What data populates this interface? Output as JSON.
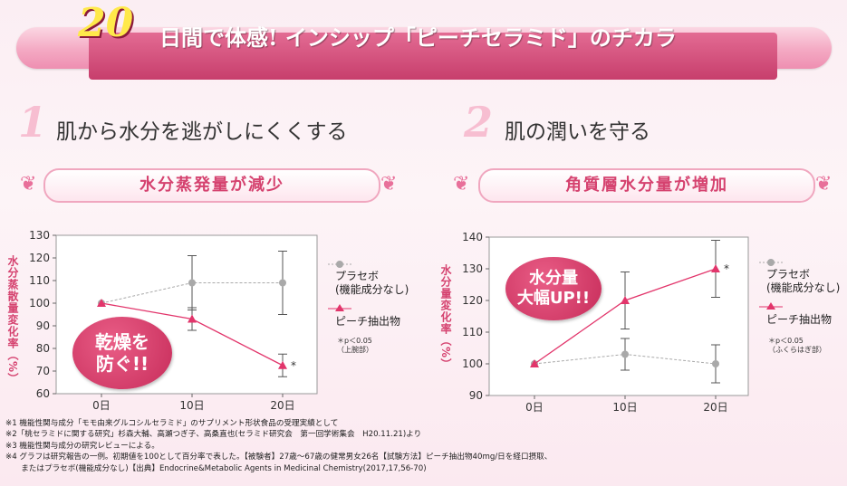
{
  "header": {
    "number": "20",
    "text": "日間で体感! インシップ「ピーチセラミド」のチカラ"
  },
  "colors": {
    "placebo": "#a9a9a9",
    "peach": "#e2356b",
    "accent": "#d5426f"
  },
  "sections": [
    {
      "num": "1",
      "title": "肌から水分を逃がしにくくする",
      "ribbon": "水分蒸発量が減少",
      "ylabel": "水分蒸散量変化率（%）",
      "bubble_line1": "乾燥を",
      "bubble_line2": "防ぐ!!",
      "note_line1": "＊p＜0.05",
      "note_line2": "（上腕部）"
    },
    {
      "num": "2",
      "title": "肌の潤いを守る",
      "ribbon": "角質層水分量が増加",
      "ylabel": "水分量変化率（%）",
      "bubble_line1": "水分量",
      "bubble_line2": "大幅UP!!",
      "note_line1": "＊p＜0.05",
      "note_line2": "（ふくらはぎ部）"
    }
  ],
  "legend": {
    "placebo": "プラセボ\n(機能成分なし)",
    "peach": "ピーチ抽出物"
  },
  "chart_data": [
    {
      "type": "line",
      "categories": [
        "0日",
        "10日",
        "20日"
      ],
      "ylim": [
        60,
        130
      ],
      "yticks": [
        60,
        70,
        80,
        90,
        100,
        110,
        120,
        130
      ],
      "ylabel": "水分蒸散量変化率（%）",
      "series": [
        {
          "name": "プラセボ(機能成分なし)",
          "values": [
            100,
            109,
            109
          ],
          "err": [
            0,
            12,
            14
          ]
        },
        {
          "name": "ピーチ抽出物",
          "values": [
            100,
            93,
            72.5
          ],
          "err": [
            0,
            5,
            5
          ]
        }
      ],
      "significance": {
        "series": 1,
        "index": 2,
        "mark": "*"
      }
    },
    {
      "type": "line",
      "categories": [
        "0日",
        "10日",
        "20日"
      ],
      "ylim": [
        90,
        140
      ],
      "yticks": [
        90,
        100,
        110,
        120,
        130,
        140
      ],
      "ylabel": "水分量変化率（%）",
      "series": [
        {
          "name": "プラセボ(機能成分なし)",
          "values": [
            100,
            103,
            100
          ],
          "err": [
            0,
            5,
            6
          ]
        },
        {
          "name": "ピーチ抽出物",
          "values": [
            100,
            120,
            130
          ],
          "err": [
            0,
            9,
            9
          ]
        }
      ],
      "significance": {
        "series": 1,
        "index": 2,
        "mark": "*"
      }
    }
  ],
  "footnotes": [
    "※1 機能性関与成分「モモ由来グルコシルセラミド」のサプリメント形状食品の受理実績として",
    "※2「桃セラミドに関する研究」杉森大輔、高瀬つぎ子、高桑直也(セラミド研究会　第一回学術集会　H20.11.21)より",
    "※3 機能性関与成分の研究レビューによる。",
    "※4 グラフは研究報告の一例。初期値を100として百分率で表した。【被験者】27歳～67歳の健常男女26名【試験方法】ピーチ抽出物40mg/日を経口摂取、",
    "　　またはプラセボ(機能成分なし)【出典】Endocrine&Metabolic Agents in Medicinal Chemistry(2017,17,56-70)"
  ]
}
